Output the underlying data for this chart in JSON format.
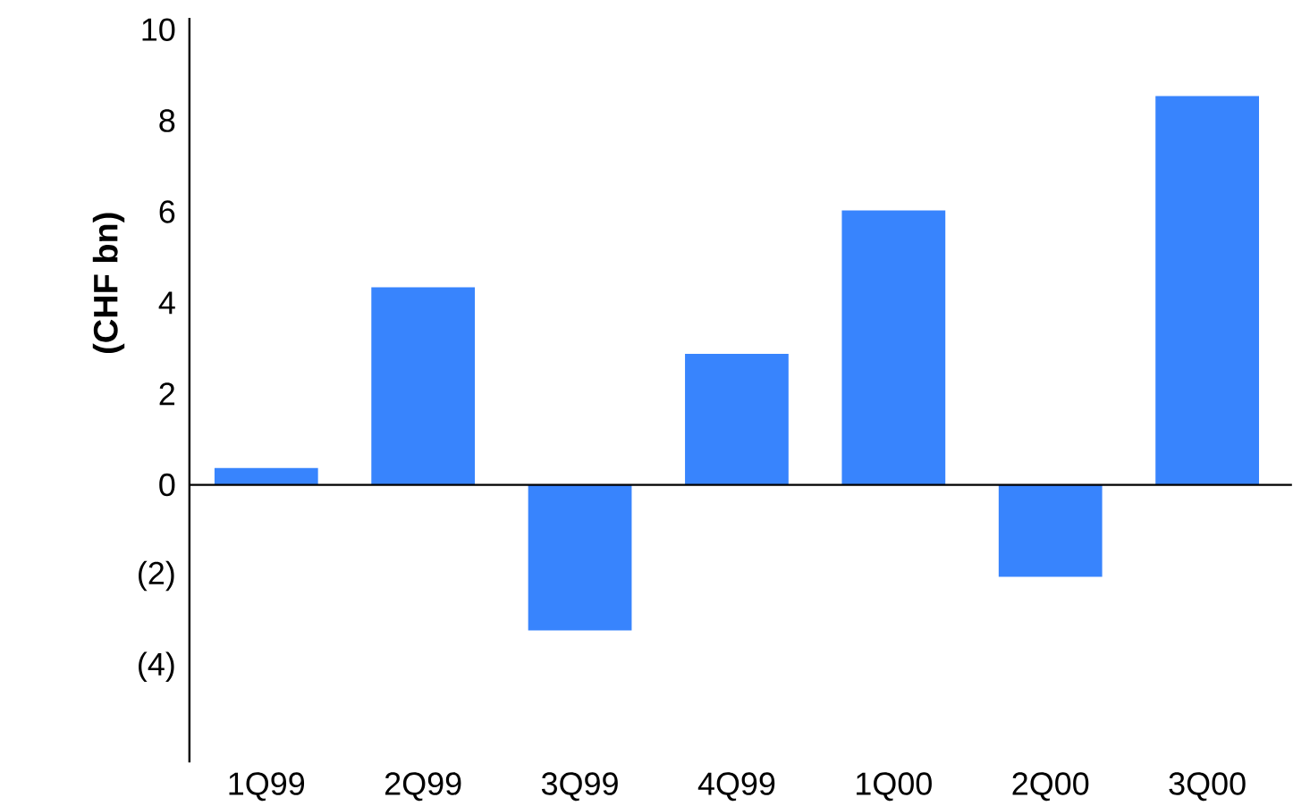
{
  "chart_data": {
    "type": "bar",
    "ylabel": "**(CHF bn)**",
    "categories": [
      "1Q99",
      "2Q99",
      "3Q99",
      "4Q99",
      "1Q00",
      "2Q00",
      "3Q00"
    ],
    "values": [
      0.37,
      4.34,
      -3.2,
      2.88,
      6.03,
      -2.02,
      8.54
    ],
    "color": "#3884fd",
    "ylim": [
      -6.1,
      10.26
    ],
    "yticks": [
      {
        "value": -4,
        "label": "(4)"
      },
      {
        "value": -2,
        "label": "(2)"
      },
      0,
      2,
      4,
      6,
      8,
      10
    ]
  }
}
